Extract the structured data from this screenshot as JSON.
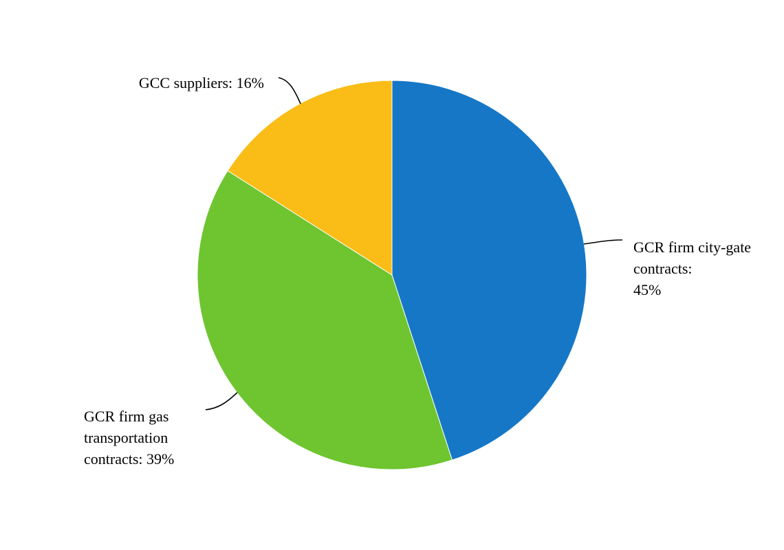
{
  "chart_data": {
    "type": "pie",
    "start": "12 o'clock",
    "direction": "clockwise",
    "slices": [
      {
        "label_lines": [
          "GCR firm city-gate",
          "contracts:",
          "45%"
        ],
        "category": "GCR firm city-gate contracts",
        "value": 45,
        "color": "#1677C7"
      },
      {
        "label_lines": [
          "GCR firm gas",
          "transportation",
          "contracts: 39%"
        ],
        "category": "GCR firm gas transportation contracts",
        "value": 39,
        "color": "#6EC530"
      },
      {
        "label_lines": [
          "GCC suppliers: 16%"
        ],
        "category": "GCC suppliers",
        "value": 16,
        "color": "#FABD17"
      }
    ],
    "legend": "none",
    "slice_border_color": "#ffffff"
  }
}
